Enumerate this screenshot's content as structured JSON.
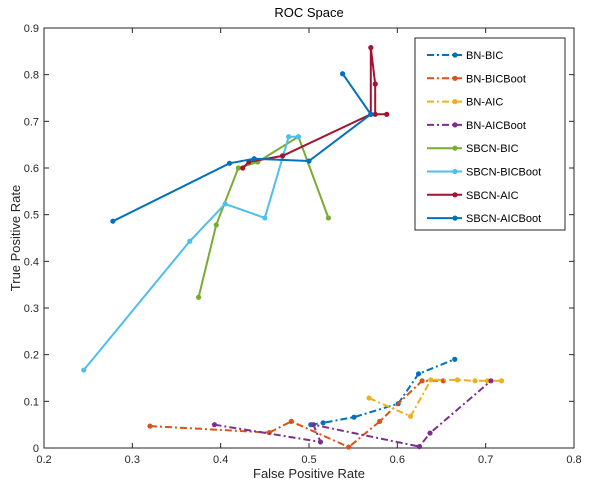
{
  "chart_data": {
    "type": "line",
    "title": "ROC Space",
    "xlabel": "False Positive Rate",
    "ylabel": "True Positive Rate",
    "xlim": [
      0.2,
      0.8
    ],
    "ylim": [
      0,
      0.9
    ],
    "xticks": [
      "0.2",
      "0.3",
      "0.4",
      "0.5",
      "0.6",
      "0.7",
      "0.8"
    ],
    "yticks": [
      "0",
      "0.1",
      "0.2",
      "0.3",
      "0.4",
      "0.5",
      "0.6",
      "0.7",
      "0.8",
      "0.9"
    ],
    "grid": false,
    "legend_position": "top-right",
    "series": [
      {
        "name": "BN-BIC",
        "color": "#0072BD",
        "dash": "dashdot",
        "points": [
          [
            0.502,
            0.05
          ],
          [
            0.516,
            0.054
          ],
          [
            0.551,
            0.066
          ],
          [
            0.601,
            0.095
          ],
          [
            0.624,
            0.159
          ],
          [
            0.665,
            0.19
          ]
        ]
      },
      {
        "name": "BN-BICBoot",
        "color": "#D95319",
        "dash": "dashdot",
        "points": [
          [
            0.32,
            0.047
          ],
          [
            0.455,
            0.033
          ],
          [
            0.48,
            0.057
          ],
          [
            0.545,
            0.002
          ],
          [
            0.58,
            0.057
          ],
          [
            0.628,
            0.144
          ],
          [
            0.652,
            0.144
          ]
        ]
      },
      {
        "name": "BN-AIC",
        "color": "#EDB120",
        "dash": "dashdot",
        "points": [
          [
            0.568,
            0.107
          ],
          [
            0.615,
            0.068
          ],
          [
            0.638,
            0.146
          ],
          [
            0.668,
            0.146
          ],
          [
            0.688,
            0.144
          ],
          [
            0.702,
            0.144
          ],
          [
            0.718,
            0.144
          ]
        ]
      },
      {
        "name": "BN-AICBoot",
        "color": "#7E2F8E",
        "dash": "dashdot",
        "points": [
          [
            0.393,
            0.05
          ],
          [
            0.513,
            0.013
          ],
          [
            0.505,
            0.05
          ],
          [
            0.625,
            0.003
          ],
          [
            0.637,
            0.032
          ],
          [
            0.706,
            0.144
          ]
        ]
      },
      {
        "name": "SBCN-BIC",
        "color": "#77AC30",
        "dash": "solid",
        "points": [
          [
            0.375,
            0.323
          ],
          [
            0.395,
            0.478
          ],
          [
            0.42,
            0.6
          ],
          [
            0.442,
            0.613
          ],
          [
            0.488,
            0.667
          ],
          [
            0.522,
            0.493
          ]
        ]
      },
      {
        "name": "SBCN-BICBoot",
        "color": "#4DBEEE",
        "dash": "solid",
        "points": [
          [
            0.245,
            0.167
          ],
          [
            0.365,
            0.443
          ],
          [
            0.405,
            0.523
          ],
          [
            0.45,
            0.493
          ],
          [
            0.477,
            0.667
          ],
          [
            0.488,
            0.667
          ]
        ]
      },
      {
        "name": "SBCN-AIC",
        "color": "#A2142F",
        "dash": "solid",
        "points": [
          [
            0.425,
            0.6
          ],
          [
            0.432,
            0.613
          ],
          [
            0.47,
            0.626
          ],
          [
            0.57,
            0.715
          ],
          [
            0.57,
            0.858
          ],
          [
            0.575,
            0.78
          ],
          [
            0.575,
            0.715
          ],
          [
            0.588,
            0.715
          ]
        ]
      },
      {
        "name": "SBCN-AICBoot",
        "color": "#0072BD",
        "dash": "solid",
        "points": [
          [
            0.278,
            0.486
          ],
          [
            0.41,
            0.61
          ],
          [
            0.438,
            0.62
          ],
          [
            0.5,
            0.615
          ],
          [
            0.57,
            0.715
          ],
          [
            0.538,
            0.802
          ]
        ]
      }
    ]
  }
}
